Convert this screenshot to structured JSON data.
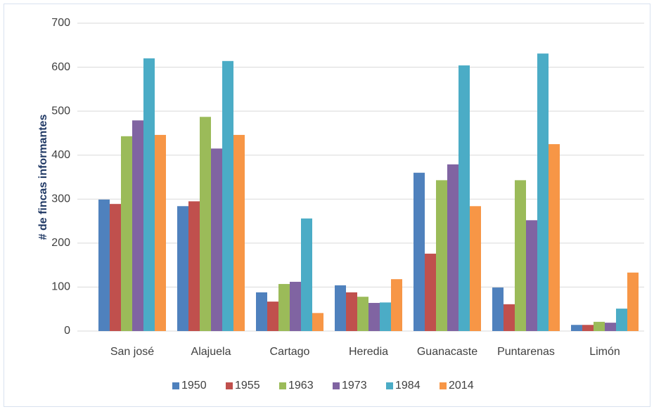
{
  "chart_data": {
    "type": "bar",
    "y_label": "# de fincas informantes",
    "categories": [
      "San josé",
      "Alajuela",
      "Cartago",
      "Heredia",
      "Guanacaste",
      "Puntarenas",
      "Limón"
    ],
    "series": [
      {
        "name": "1950",
        "color": "#4f81bd",
        "values": [
          299,
          284,
          88,
          104,
          360,
          99,
          14
        ]
      },
      {
        "name": "1955",
        "color": "#c0504d",
        "values": [
          289,
          295,
          67,
          88,
          176,
          61,
          14
        ]
      },
      {
        "name": "1963",
        "color": "#9bbb59",
        "values": [
          443,
          487,
          107,
          78,
          343,
          343,
          21
        ]
      },
      {
        "name": "1973",
        "color": "#8064a2",
        "values": [
          479,
          415,
          112,
          64,
          379,
          252,
          19
        ]
      },
      {
        "name": "1984",
        "color": "#4bacc6",
        "values": [
          620,
          614,
          256,
          65,
          604,
          631,
          51
        ]
      },
      {
        "name": "2014",
        "color": "#f79646",
        "values": [
          446,
          446,
          41,
          118,
          284,
          425,
          133
        ]
      }
    ],
    "ylim": [
      0,
      700
    ],
    "yticks": [
      0,
      100,
      200,
      300,
      400,
      500,
      600,
      700
    ],
    "grid": true,
    "legend": "bottom"
  }
}
